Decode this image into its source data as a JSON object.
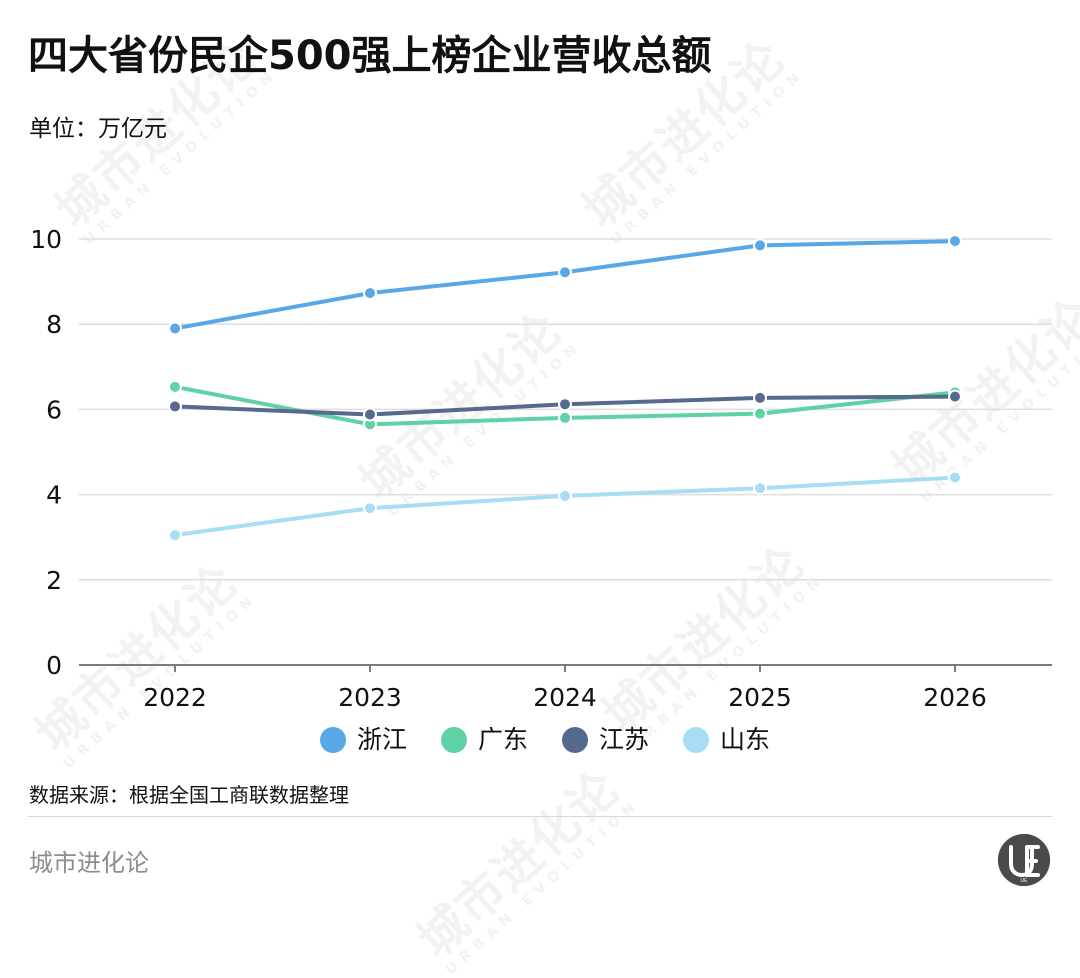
{
  "title": "四大省份民企500强上榜企业营收总额",
  "unit": "单位：万亿元",
  "source": "数据来源：根据全国工商联数据整理",
  "brand": "城市进化论",
  "logo_mark": "UE",
  "watermark": {
    "cn": "城市进化论",
    "en": "URBAN EVOLUTION"
  },
  "legend": [
    {
      "name": "浙江",
      "color": "#5aa7e6"
    },
    {
      "name": "广东",
      "color": "#60d0a5"
    },
    {
      "name": "江苏",
      "color": "#56698f"
    },
    {
      "name": "山东",
      "color": "#a8ddf6"
    }
  ],
  "chart_data": {
    "type": "line",
    "title": "四大省份民企500强上榜企业营收总额",
    "ylabel": "单位：万亿元",
    "xlabel": "",
    "categories": [
      "2022",
      "2023",
      "2024",
      "2025",
      "2026"
    ],
    "yticks": [
      "0",
      "2",
      "4",
      "6",
      "8",
      "10"
    ],
    "ylim": [
      0,
      10
    ],
    "grid": true,
    "legend_placement": "bottom",
    "series": [
      {
        "name": "浙江",
        "color": "#5aa7e6",
        "values": [
          7.9,
          8.73,
          9.22,
          9.85,
          9.95
        ]
      },
      {
        "name": "广东",
        "color": "#60d0a5",
        "values": [
          6.53,
          5.65,
          5.8,
          5.9,
          6.4
        ]
      },
      {
        "name": "江苏",
        "color": "#56698f",
        "values": [
          6.07,
          5.88,
          6.12,
          6.27,
          6.3
        ]
      },
      {
        "name": "山东",
        "color": "#a8ddf6",
        "values": [
          3.05,
          3.68,
          3.97,
          4.15,
          4.4
        ]
      }
    ]
  }
}
